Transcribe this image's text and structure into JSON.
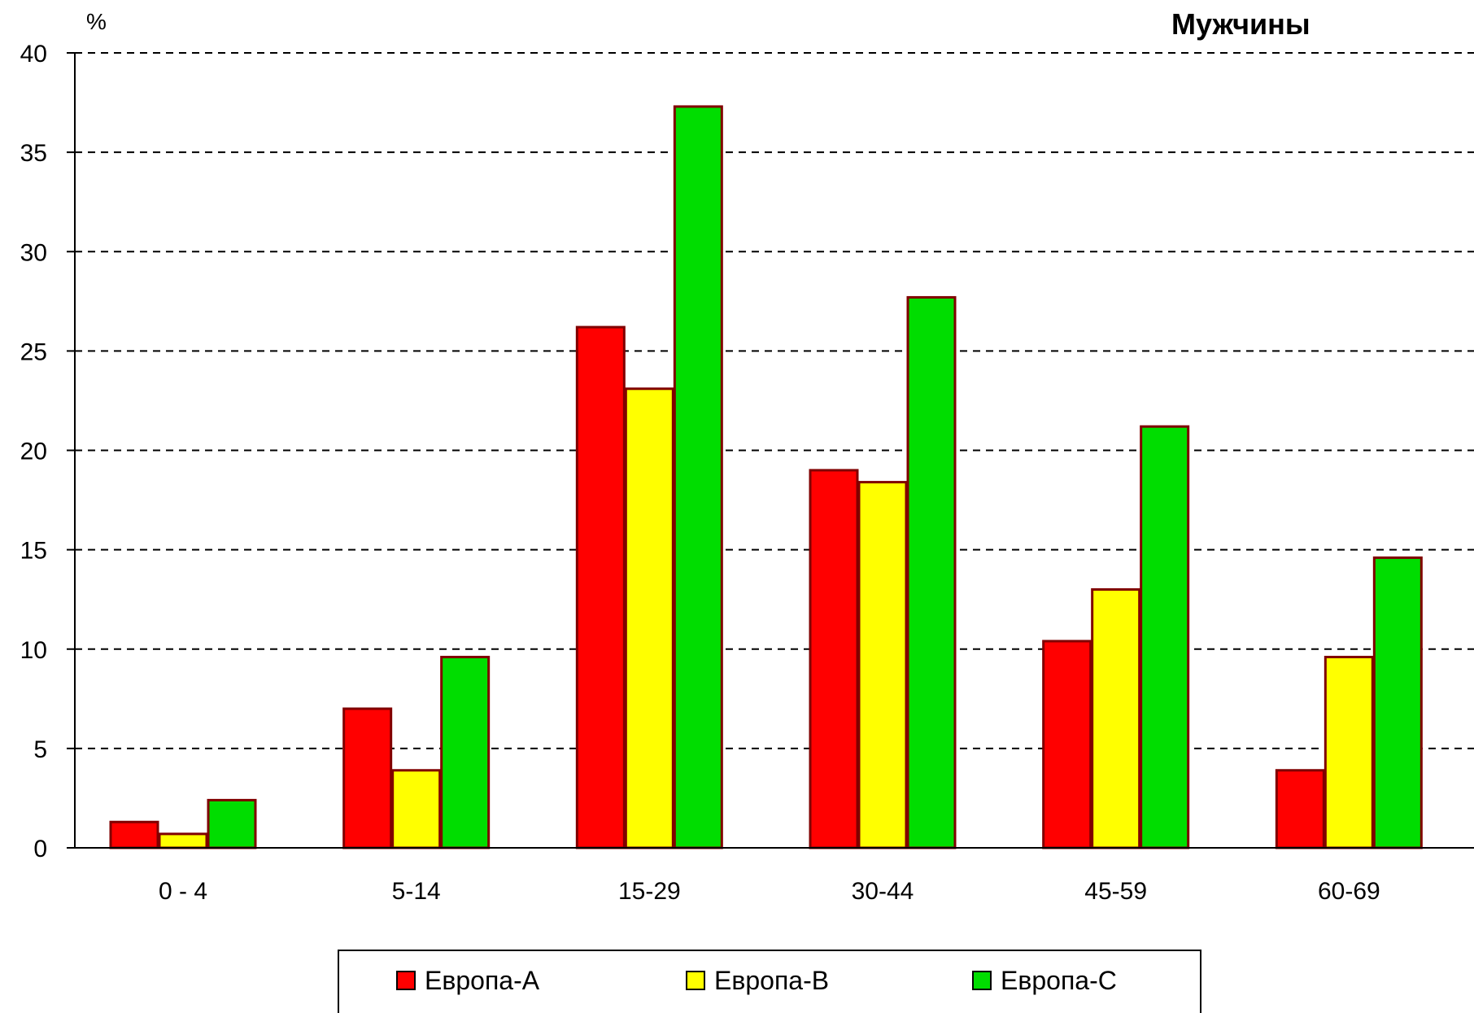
{
  "chart_data": {
    "type": "bar",
    "title": "Мужчины",
    "ylabel": "%",
    "xlabel": "",
    "ylim": [
      0,
      40
    ],
    "yticks": [
      "0",
      "5",
      "10",
      "15",
      "20",
      "25",
      "30",
      "35",
      "40"
    ],
    "categories": [
      "0 - 4",
      "5-14",
      "15-29",
      "30-44",
      "45-59",
      "60-69"
    ],
    "series": [
      {
        "name": "Европа-A",
        "color": "#ff0000",
        "values": [
          1.3,
          7.0,
          26.2,
          19.0,
          10.4,
          3.9
        ]
      },
      {
        "name": "Европа-B",
        "color": "#ffff00",
        "values": [
          0.7,
          3.9,
          23.1,
          18.4,
          13.0,
          9.6
        ]
      },
      {
        "name": "Европа-C",
        "color": "#00dd00",
        "values": [
          2.4,
          9.6,
          37.3,
          27.7,
          21.2,
          14.6
        ]
      }
    ],
    "grid": true,
    "grid_style": "dashed",
    "legend_position": "bottom"
  }
}
